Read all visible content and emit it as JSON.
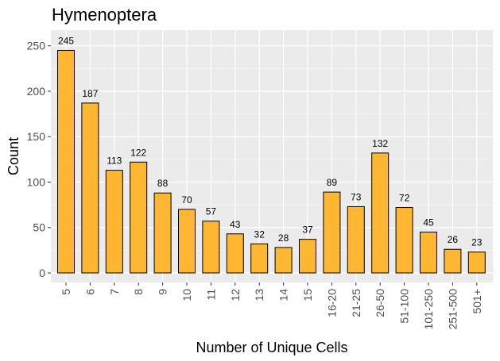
{
  "chart_data": {
    "type": "bar",
    "title": "Hymenoptera",
    "xlabel": "Number of Unique Cells",
    "ylabel": "Count",
    "categories": [
      "5",
      "6",
      "7",
      "8",
      "9",
      "10",
      "11",
      "12",
      "13",
      "14",
      "15",
      "16-20",
      "21-25",
      "26-50",
      "51-100",
      "101-250",
      "251-500",
      "501+"
    ],
    "values": [
      245,
      187,
      113,
      122,
      88,
      70,
      57,
      43,
      32,
      28,
      37,
      89,
      73,
      132,
      72,
      45,
      26,
      23
    ],
    "data_labels": [
      "245",
      "187",
      "113",
      "122",
      "88",
      "70",
      "57",
      "43",
      "32",
      "28",
      "37",
      "89",
      "73",
      "132",
      "72",
      "45",
      "26",
      "23"
    ],
    "y_ticks": [
      0,
      50,
      100,
      150,
      200,
      250
    ],
    "y_tick_labels": [
      "0",
      "50",
      "100",
      "150",
      "200",
      "250"
    ],
    "ylim": [
      0,
      262
    ],
    "grid": true,
    "legend": "none",
    "colors": {
      "bar_fill": "#FFB631",
      "bar_stroke": "#000000",
      "panel_background": "#EBEBEB",
      "grid": "#FFFFFF"
    }
  }
}
